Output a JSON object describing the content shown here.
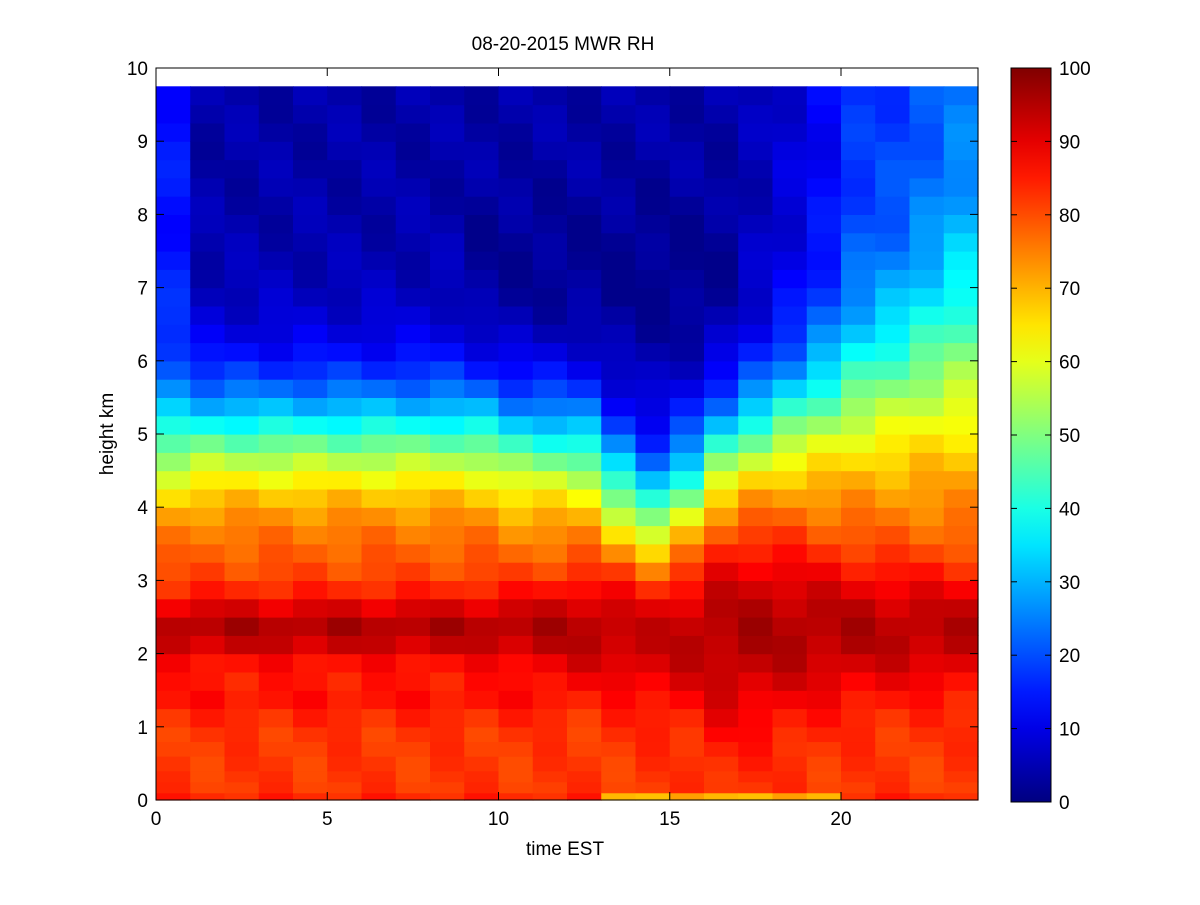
{
  "chart_data": {
    "type": "heatmap",
    "title": "08-20-2015 MWR RH",
    "xlabel": "time EST",
    "ylabel": "height km",
    "xlim": [
      0,
      24
    ],
    "ylim": [
      0,
      10
    ],
    "xticks": [
      0,
      5,
      10,
      15,
      20
    ],
    "yticks": [
      0,
      1,
      2,
      3,
      4,
      5,
      6,
      7,
      8,
      9,
      10
    ],
    "colormap": "jet",
    "clim": [
      0,
      100
    ],
    "colorbar_ticks": [
      0,
      10,
      20,
      30,
      40,
      50,
      60,
      70,
      80,
      90,
      100
    ],
    "x": [
      0.5,
      1.5,
      2.5,
      3.5,
      4.5,
      5.5,
      6.5,
      7.5,
      8.5,
      9.5,
      10.5,
      11.5,
      12.5,
      13.5,
      14.5,
      15.5,
      16.5,
      17.5,
      18.5,
      19.5,
      20.5,
      21.5,
      22.5,
      23.5
    ],
    "y_bounds": [
      0,
      0.1,
      0.25,
      0.4,
      0.6,
      0.8,
      1.0,
      1.25,
      1.5,
      1.75,
      2.0,
      2.25,
      2.5,
      2.75,
      3.0,
      3.25,
      3.5,
      3.75,
      4.0,
      4.25,
      4.5,
      4.75,
      5.0,
      5.25,
      5.5,
      5.75,
      6.0,
      6.25,
      6.5,
      6.75,
      7.0,
      7.25,
      7.5,
      7.75,
      8.0,
      8.25,
      8.5,
      8.75,
      9.0,
      9.25,
      9.5,
      9.75
    ],
    "grid": false,
    "legend": "none"
  }
}
